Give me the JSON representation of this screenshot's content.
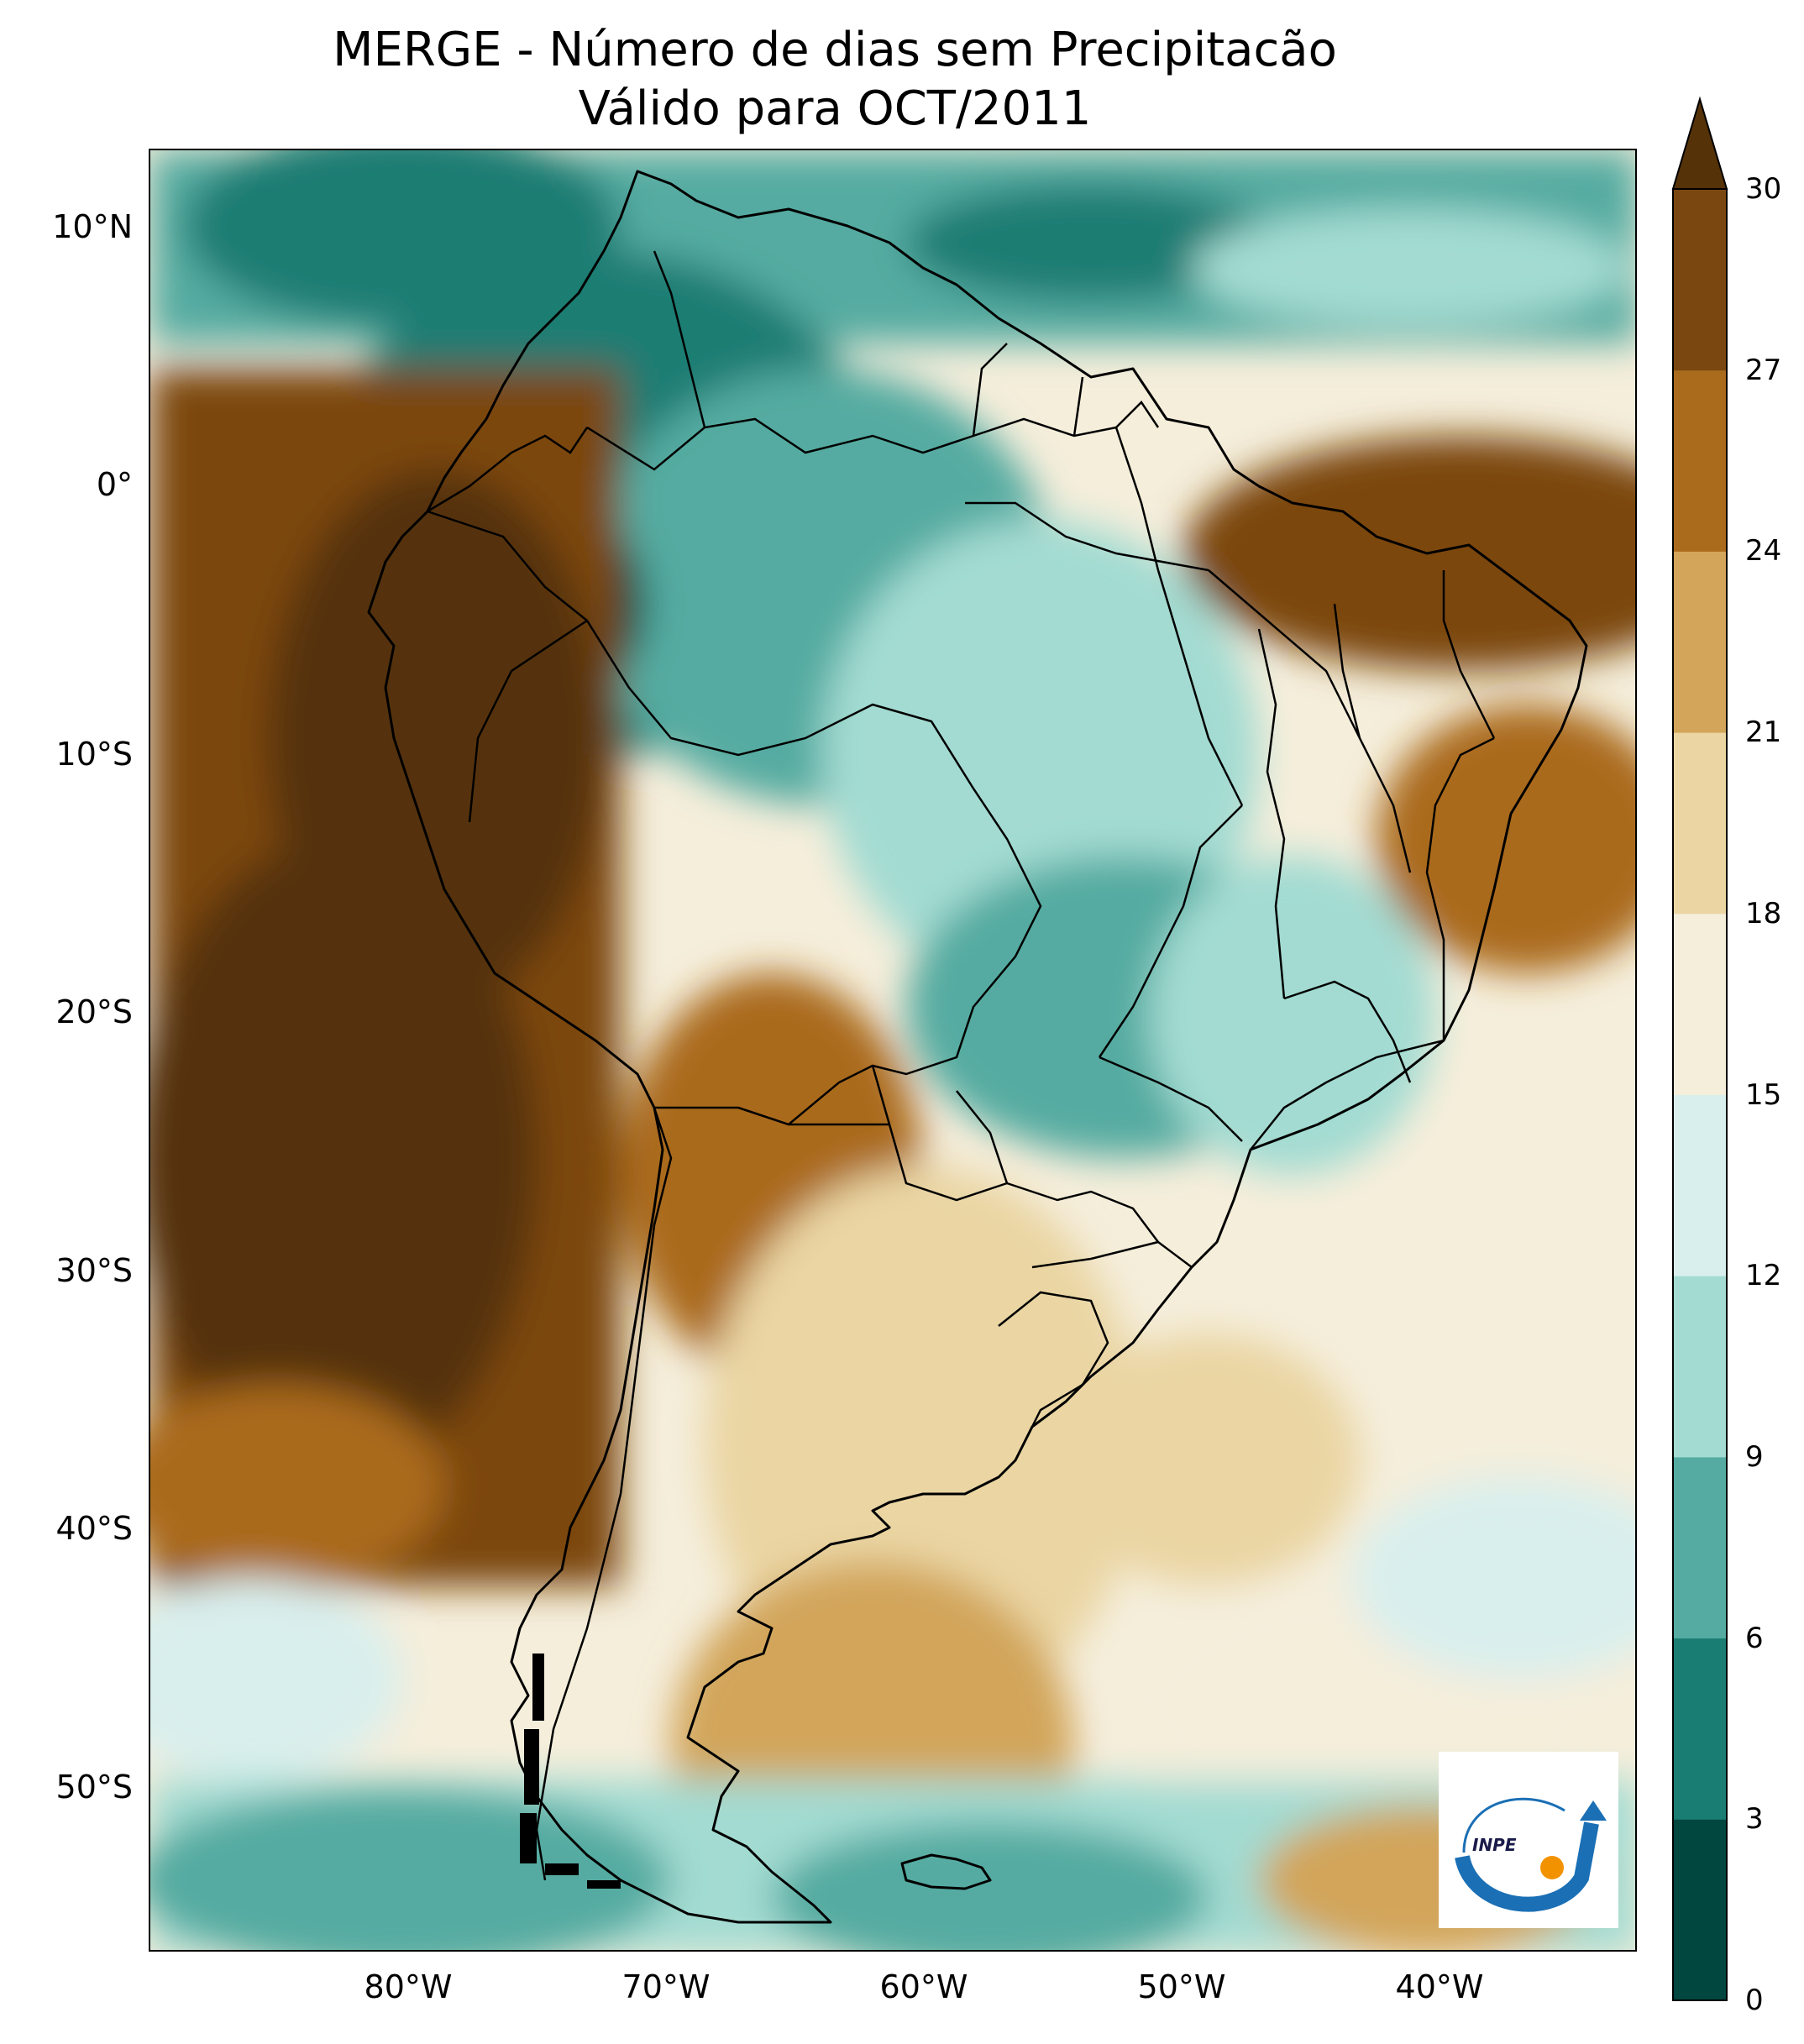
{
  "title": {
    "line1": "MERGE - Número de dias sem Precipitacão",
    "line2": "Válido para OCT/2011"
  },
  "axes": {
    "lat_ticks": [
      "10°N",
      "0°",
      "10°S",
      "20°S",
      "30°S",
      "40°S",
      "50°S"
    ],
    "lon_ticks": [
      "80°W",
      "70°W",
      "60°W",
      "50°W",
      "40°W"
    ]
  },
  "colorbar": {
    "ticks": [
      "30",
      "27",
      "24",
      "21",
      "18",
      "15",
      "12",
      "9",
      "6",
      "3",
      "0"
    ],
    "extend": "max",
    "colors": [
      "#01463f",
      "#1a7d73",
      "#55aba1",
      "#a3dbd2",
      "#d9efed",
      "#f5eedb",
      "#ead5a3",
      "#d2a55a",
      "#aa6b1d",
      "#7b4710",
      "#553208"
    ]
  },
  "logo": {
    "text": "INPE",
    "colors": {
      "blue": "#1a6fb5",
      "orange": "#f39200"
    }
  },
  "legend_semantics": "low values teal = few dry days; high values brown = many dry days"
}
